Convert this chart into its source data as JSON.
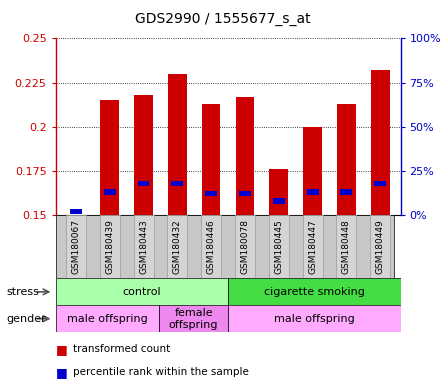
{
  "title": "GDS2990 / 1555677_s_at",
  "samples": [
    "GSM180067",
    "GSM180439",
    "GSM180443",
    "GSM180432",
    "GSM180446",
    "GSM180078",
    "GSM180445",
    "GSM180447",
    "GSM180448",
    "GSM180449"
  ],
  "red_values": [
    0.15,
    0.215,
    0.218,
    0.23,
    0.213,
    0.217,
    0.176,
    0.2,
    0.213,
    0.232
  ],
  "blue_values": [
    0.152,
    0.163,
    0.168,
    0.168,
    0.162,
    0.162,
    0.158,
    0.163,
    0.163,
    0.168
  ],
  "bar_bottom": 0.15,
  "ylim": [
    0.15,
    0.25
  ],
  "yticks": [
    0.15,
    0.175,
    0.2,
    0.225,
    0.25
  ],
  "ytick_labels": [
    "0.15",
    "0.175",
    "0.2",
    "0.225",
    "0.25"
  ],
  "y2ticks": [
    0,
    25,
    50,
    75,
    100
  ],
  "y2tick_labels": [
    "0%",
    "25%",
    "50%",
    "75%",
    "100%"
  ],
  "stress_groups": [
    {
      "label": "control",
      "start": 0,
      "end": 5,
      "color": "#AAFFAA"
    },
    {
      "label": "cigarette smoking",
      "start": 5,
      "end": 10,
      "color": "#44DD44"
    }
  ],
  "gender_groups": [
    {
      "label": "male offspring",
      "start": 0,
      "end": 3,
      "color": "#FFAAFF"
    },
    {
      "label": "female\noffspring",
      "start": 3,
      "end": 5,
      "color": "#EE88EE"
    },
    {
      "label": "male offspring",
      "start": 5,
      "end": 10,
      "color": "#FFAAFF"
    }
  ],
  "bar_color_red": "#CC0000",
  "bar_color_blue": "#0000CC",
  "bar_width": 0.55,
  "blue_bar_width": 0.35,
  "blue_bar_height": 0.003,
  "background_color": "#FFFFFF",
  "left_label_color": "#CC0000",
  "right_label_color": "#0000CC",
  "label_row_color": "#C8C8C8",
  "stress_label": "stress",
  "gender_label": "gender",
  "legend_red_label": "transformed count",
  "legend_blue_label": "percentile rank within the sample"
}
